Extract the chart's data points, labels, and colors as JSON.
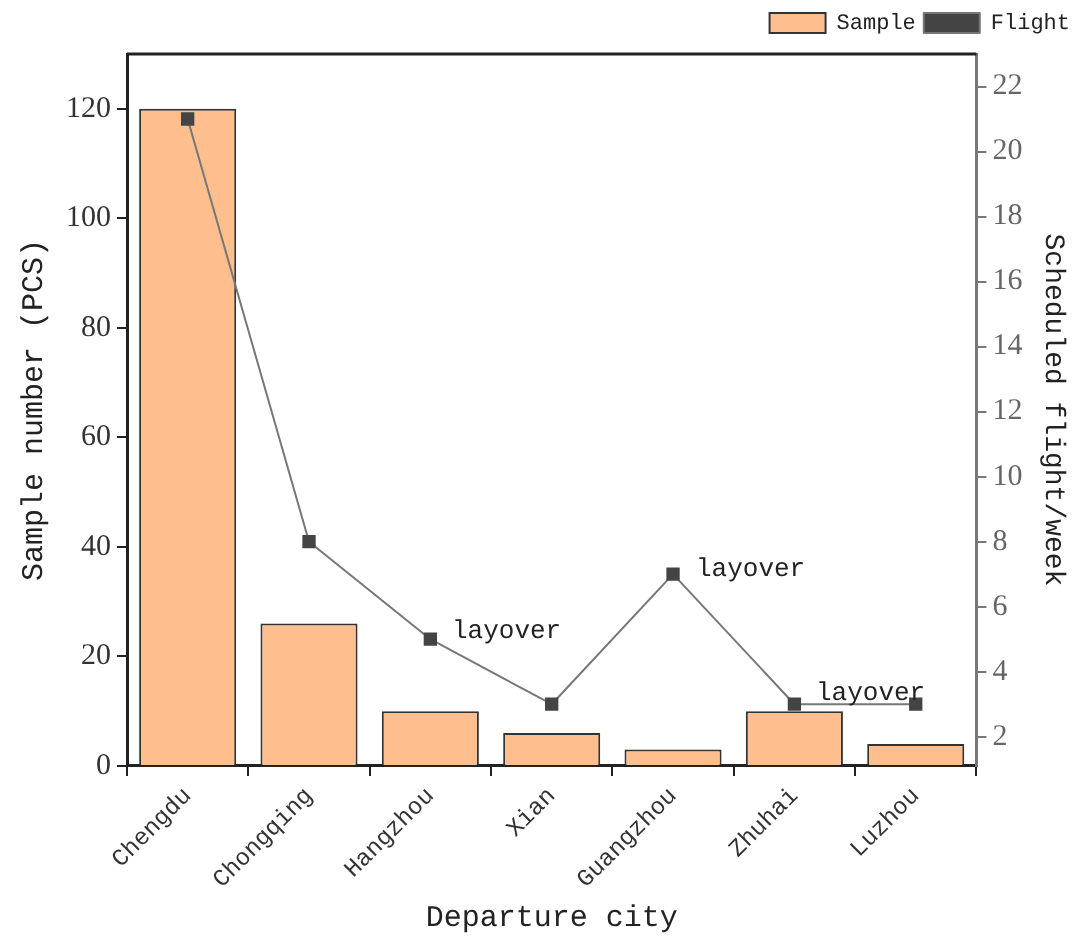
{
  "chart_data": {
    "type": "bar",
    "xlabel": "Departure city",
    "ylabel": "Sample number (PCS)",
    "y2label": "Scheduled flight/week",
    "categories": [
      "Chengdu",
      "Chongqing",
      "Hangzhou",
      "Xian",
      "Guangzhou",
      "Zhuhai",
      "Luzhou"
    ],
    "series": [
      {
        "name": "Sample",
        "color": "#ffbe8e",
        "values": [
          120,
          26,
          10,
          6,
          3,
          10,
          4
        ]
      },
      {
        "name": "Flight",
        "type": "line",
        "axis": "y2",
        "color": "#444444",
        "marker": "square",
        "values": [
          21,
          8,
          5,
          3,
          7,
          3,
          3
        ]
      }
    ],
    "ylim": [
      0,
      130
    ],
    "yticks": [
      0,
      20,
      40,
      60,
      80,
      100,
      120
    ],
    "y2lim": [
      1.1,
      23
    ],
    "y2ticks": [
      2,
      4,
      6,
      8,
      10,
      12,
      14,
      16,
      18,
      20,
      22
    ],
    "annotations": [
      "layover",
      "layover",
      "layover"
    ],
    "legend": "top right",
    "grid": false
  }
}
